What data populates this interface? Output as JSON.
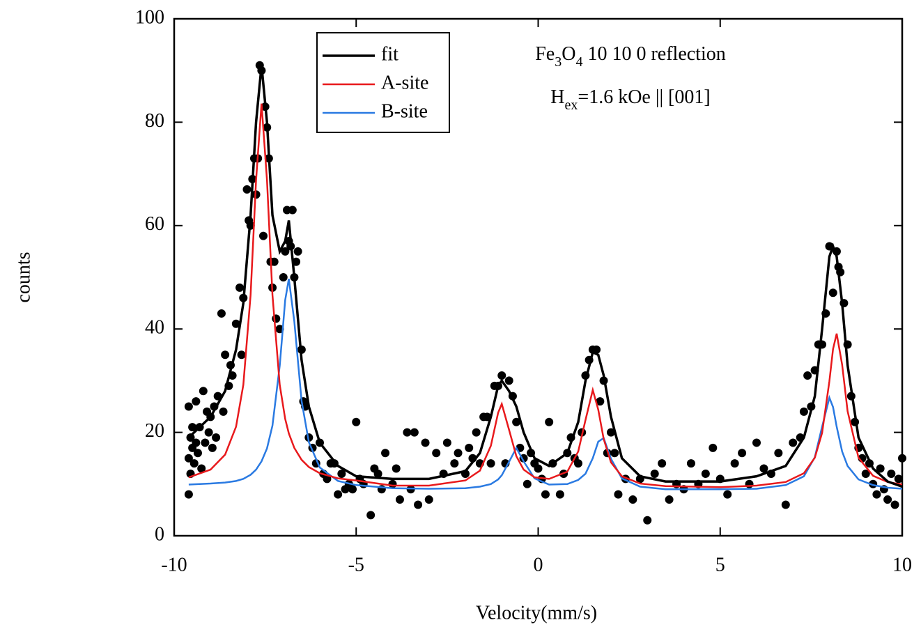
{
  "chart_data": {
    "type": "line",
    "x_label": "Velocity(mm/s)",
    "y_label": "counts",
    "xlim": [
      -10,
      10
    ],
    "ylim": [
      0,
      100
    ],
    "xticks": [
      -10,
      -5,
      0,
      5,
      10
    ],
    "yticks": [
      0,
      20,
      40,
      60,
      80,
      100
    ],
    "legend": "upper left",
    "annotations": [
      {
        "parts": [
          {
            "text": "Fe"
          },
          {
            "text": "3",
            "sub": true
          },
          {
            "text": "O"
          },
          {
            "text": "4",
            "sub": true
          },
          {
            "text": " 10 10 0 reflection"
          }
        ]
      },
      {
        "parts": [
          {
            "text": "H"
          },
          {
            "text": "ex",
            "sub": true
          },
          {
            "text": "=1.6 kOe || [001]"
          }
        ]
      }
    ],
    "x": [
      -9.6,
      -9,
      -8.6,
      -8.3,
      -8.1,
      -7.9,
      -7.75,
      -7.6,
      -7.45,
      -7.3,
      -7.1,
      -6.95,
      -6.85,
      -6.7,
      -6.5,
      -6.3,
      -6,
      -5.5,
      -5,
      -4,
      -3,
      -2,
      -1.6,
      -1.3,
      -1.1,
      -1.0,
      -0.8,
      -0.6,
      -0.4,
      -0.1,
      0.3,
      0.8,
      1.1,
      1.3,
      1.5,
      1.65,
      1.8,
      2.0,
      2.3,
      2.8,
      3.5,
      5,
      6,
      6.8,
      7.3,
      7.6,
      7.8,
      8.0,
      8.1,
      8.2,
      8.35,
      8.5,
      8.8,
      9.2,
      9.6,
      10
    ],
    "series": [
      {
        "name": "fit",
        "color": "#000000",
        "values": [
          19,
          23,
          28,
          36,
          45,
          62,
          80,
          91,
          80,
          62,
          55,
          57,
          61,
          50,
          34,
          25,
          18,
          13.5,
          11.5,
          11,
          11,
          12.5,
          16,
          23,
          29,
          30,
          28,
          25,
          20,
          15,
          13.5,
          16,
          22,
          30,
          35.5,
          35,
          31,
          23,
          15,
          11.5,
          10.5,
          10.5,
          11.5,
          13.5,
          19,
          27,
          40,
          54,
          56,
          54,
          45,
          33,
          19,
          13,
          10.5,
          9.5
        ]
      },
      {
        "name": "A-site",
        "color": "#e8191c",
        "values": [
          11.3,
          12.8,
          15.7,
          21.1,
          29.2,
          46.6,
          68.8,
          83.6,
          68.8,
          46.6,
          29.2,
          22.6,
          19.8,
          17,
          14.7,
          13.3,
          12.1,
          11.1,
          10.7,
          9.7,
          9.7,
          10.7,
          12.6,
          17.4,
          23.8,
          25.5,
          20.5,
          15.4,
          12.8,
          11.3,
          11,
          12.4,
          16.3,
          22.4,
          28.2,
          24.4,
          18.7,
          14.2,
          11.5,
          10.1,
          9.6,
          9.4,
          9.7,
          10.4,
          12.1,
          15.1,
          19.9,
          29.9,
          36.1,
          39.1,
          33.1,
          24.1,
          15.1,
          11.6,
          10.4,
          9.9
        ]
      },
      {
        "name": "B-site",
        "color": "#2a7ae2",
        "values": [
          9.9,
          10.1,
          10.3,
          10.6,
          11,
          11.8,
          12.8,
          14.4,
          16.9,
          21.3,
          32.9,
          45.6,
          49.7,
          41.5,
          26.1,
          18.1,
          13.2,
          10.6,
          9.8,
          9.2,
          9.1,
          9.2,
          9.5,
          10,
          10.9,
          11.7,
          14.3,
          17,
          14.4,
          11.1,
          9.9,
          10,
          10.8,
          12,
          15,
          18.2,
          18.9,
          14.9,
          11.1,
          9.5,
          9,
          9,
          9.1,
          9.8,
          11.5,
          15.2,
          21.1,
          26.7,
          24.9,
          21.1,
          16.3,
          13.5,
          10.9,
          9.8,
          9.3,
          9.1
        ]
      }
    ],
    "points": {
      "color": "#000000",
      "x": [
        -9.6,
        -9.6,
        -9.6,
        -9.55,
        -9.55,
        -9.5,
        -9.5,
        -9.45,
        -9.4,
        -9.4,
        -9.35,
        -9.3,
        -9.25,
        -9.2,
        -9.15,
        -9.1,
        -9.05,
        -9.0,
        -8.95,
        -8.9,
        -8.85,
        -8.8,
        -8.7,
        -8.65,
        -8.6,
        -8.5,
        -8.45,
        -8.4,
        -8.3,
        -8.2,
        -8.15,
        -8.1,
        -8.0,
        -7.95,
        -7.9,
        -7.85,
        -7.8,
        -7.75,
        -7.7,
        -7.65,
        -7.6,
        -7.55,
        -7.5,
        -7.45,
        -7.4,
        -7.35,
        -7.3,
        -7.25,
        -7.2,
        -7.1,
        -7.0,
        -6.95,
        -6.9,
        -6.85,
        -6.8,
        -6.75,
        -6.7,
        -6.65,
        -6.6,
        -6.5,
        -6.45,
        -6.4,
        -6.3,
        -6.2,
        -6.1,
        -6.0,
        -5.9,
        -5.8,
        -5.7,
        -5.6,
        -5.5,
        -5.4,
        -5.3,
        -5.2,
        -5.1,
        -5.0,
        -4.9,
        -4.8,
        -4.6,
        -4.5,
        -4.4,
        -4.3,
        -4.2,
        -4.0,
        -3.9,
        -3.8,
        -3.6,
        -3.5,
        -3.4,
        -3.3,
        -3.1,
        -3.0,
        -2.8,
        -2.6,
        -2.5,
        -2.3,
        -2.2,
        -2.0,
        -1.9,
        -1.8,
        -1.7,
        -1.6,
        -1.5,
        -1.4,
        -1.3,
        -1.2,
        -1.1,
        -1.0,
        -0.9,
        -0.8,
        -0.7,
        -0.6,
        -0.5,
        -0.4,
        -0.3,
        -0.2,
        -0.1,
        0.0,
        0.1,
        0.2,
        0.3,
        0.4,
        0.6,
        0.7,
        0.8,
        0.9,
        1.0,
        1.1,
        1.2,
        1.3,
        1.4,
        1.5,
        1.6,
        1.7,
        1.8,
        1.9,
        2.0,
        2.1,
        2.2,
        2.4,
        2.6,
        2.8,
        3.0,
        3.2,
        3.4,
        3.6,
        3.8,
        4.0,
        4.2,
        4.4,
        4.6,
        4.8,
        5.0,
        5.2,
        5.4,
        5.6,
        5.8,
        6.0,
        6.2,
        6.4,
        6.6,
        6.8,
        7.0,
        7.2,
        7.3,
        7.4,
        7.5,
        7.6,
        7.7,
        7.8,
        7.9,
        8.0,
        8.1,
        8.2,
        8.25,
        8.3,
        8.4,
        8.5,
        8.6,
        8.7,
        8.8,
        8.9,
        9.0,
        9.1,
        9.2,
        9.3,
        9.4,
        9.5,
        9.6,
        9.7,
        9.8,
        9.9,
        10.0
      ],
      "y": [
        8,
        15,
        25,
        19,
        12,
        21,
        17,
        14,
        26,
        18,
        16,
        21,
        13,
        28,
        18,
        24,
        20,
        23,
        17,
        25,
        19,
        27,
        43,
        24,
        35,
        29,
        33,
        31,
        41,
        48,
        35,
        46,
        67,
        61,
        60,
        69,
        73,
        66,
        73,
        91,
        90,
        58,
        83,
        79,
        73,
        53,
        48,
        53,
        42,
        40,
        50,
        55,
        63,
        57,
        56,
        63,
        50,
        53,
        55,
        36,
        26,
        25,
        19,
        17,
        14,
        18,
        12,
        11,
        14,
        14,
        8,
        12,
        9,
        10,
        9,
        22,
        11,
        10,
        4,
        13,
        12,
        9,
        16,
        10,
        13,
        7,
        20,
        9,
        20,
        6,
        18,
        7,
        16,
        12,
        18,
        14,
        16,
        12,
        17,
        15,
        20,
        14,
        23,
        23,
        14,
        29,
        29,
        31,
        14,
        30,
        27,
        22,
        17,
        15,
        10,
        16,
        14,
        13,
        11,
        8,
        22,
        14,
        8,
        12,
        16,
        19,
        15,
        14,
        20,
        31,
        34,
        36,
        36,
        26,
        30,
        16,
        20,
        16,
        8,
        11,
        7,
        11,
        3,
        12,
        14,
        7,
        10,
        9,
        14,
        10,
        12,
        17,
        11,
        8,
        14,
        16,
        10,
        18,
        13,
        12,
        16,
        6,
        18,
        19,
        24,
        31,
        25,
        32,
        37,
        37,
        43,
        56,
        47,
        55,
        52,
        51,
        45,
        37,
        27,
        22,
        17,
        15,
        12,
        14,
        10,
        8,
        13,
        9,
        7,
        12,
        6,
        11,
        15
      ]
    }
  }
}
